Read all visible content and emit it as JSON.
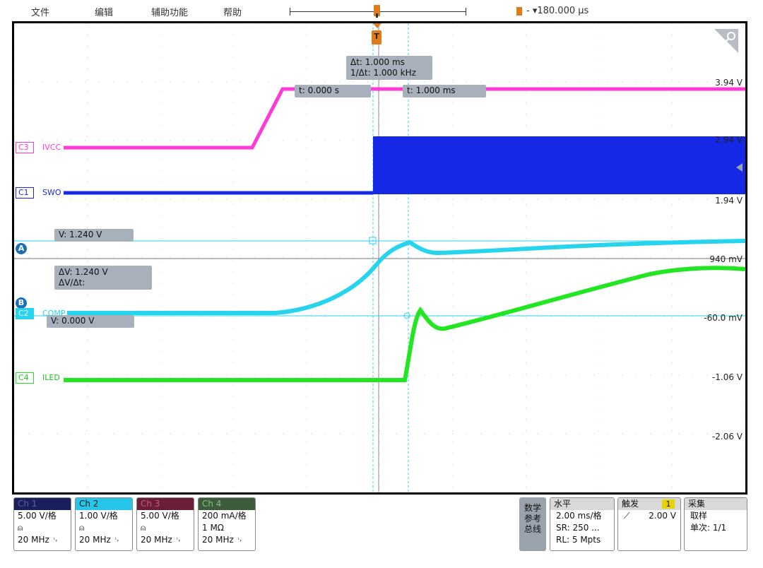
{
  "menu": {
    "items": [
      "文件",
      "编辑",
      "辅助功能",
      "帮助"
    ],
    "horizontal_position": "- ▾180.000 µs"
  },
  "screen": {
    "cursor_time": {
      "delta_t": "Δt:   1.000 ms",
      "inv_delta_t": "1/Δt:  1.000 kHz",
      "t1": "t:   0.000 s",
      "t2": "t:   1.000 ms"
    },
    "cursor_volt": {
      "va": "V:   1.240 V",
      "delta_v": "ΔV:       1.240 V",
      "delta_v_dt": "ΔV/Δt:",
      "vb": "V:   0.000 V",
      "a_label": "A",
      "b_label": "B"
    },
    "channels": [
      {
        "tag": "C3",
        "name": "IVCC",
        "color": "#ff3ad6"
      },
      {
        "tag": "C1",
        "name": "SWO",
        "color": "#1528e6"
      },
      {
        "tag": "C2",
        "name": "COMP",
        "color": "#26d4ee"
      },
      {
        "tag": "C4",
        "name": "ILED",
        "color": "#22e622"
      }
    ],
    "right_labels": [
      {
        "text": "3.94 V",
        "color": "#26d4ee"
      },
      {
        "text": "2.94 V",
        "color": "#26d4ee"
      },
      {
        "text": "1.94 V",
        "color": "#26d4ee"
      },
      {
        "text": "940 mV",
        "color": "#26d4ee"
      },
      {
        "text": "-60.0 mV",
        "color": "#26d4ee"
      },
      {
        "text": "-1.06 V",
        "color": "#26d4ee"
      },
      {
        "text": "-2.06 V",
        "color": "#26d4ee"
      }
    ],
    "trigger_label": "T"
  },
  "bottom": {
    "ch1": {
      "title": "Ch 1",
      "scale": "5.00 V/格",
      "icon": "⍝",
      "bw": "20 MHz ␊",
      "color": "#1a1e5a"
    },
    "ch2": {
      "title": "Ch 2",
      "scale": "1.00 V/格",
      "icon": "⍝",
      "bw": "20 MHz ␊",
      "color": "#26c6ea"
    },
    "ch3": {
      "title": "Ch 3",
      "scale": "5.00 V/格",
      "icon": "⍝",
      "bw": "20 MHz ␊",
      "color": "#6b1d3a"
    },
    "ch4": {
      "title": "Ch 4",
      "scale": "200 mA/格",
      "impedance": "1 MΩ",
      "bw": "20 MHz ␊",
      "color": "#3d5b3d"
    },
    "math": "数学\n参考\n总线",
    "horizontal": {
      "title": "水平",
      "scale": "2.00 ms/格",
      "sr": "SR: 250 ...",
      "rl": "RL: 5 Mpts"
    },
    "trigger": {
      "title": "触发",
      "source": "1",
      "slope": "⟋",
      "level": "2.00 V"
    },
    "acquire": {
      "title": "采集",
      "mode": "取样",
      "single": "单次: 1/1"
    }
  }
}
